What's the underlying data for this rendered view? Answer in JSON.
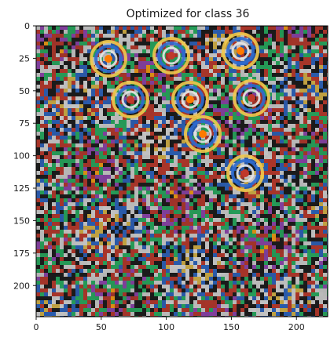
{
  "figure": {
    "title": "Optimized for class 36",
    "image_description_name": "activation-maximization-image",
    "image_size": [
      224,
      224
    ],
    "x_ticks": [
      0,
      50,
      100,
      150,
      200
    ],
    "y_ticks": [
      0,
      25,
      50,
      75,
      100,
      125,
      150,
      175,
      200
    ],
    "x_tick_labels": [
      "0",
      "50",
      "100",
      "150",
      "200"
    ],
    "y_tick_labels": [
      "0",
      "25",
      "50",
      "75",
      "100",
      "125",
      "150",
      "175",
      "200"
    ],
    "palette": [
      "#f2c94c",
      "#2d6bd1",
      "#e6e6e6",
      "#1a1a1a",
      "#c0392b",
      "#27ae60",
      "#8e44ad",
      "#f39c12",
      "#16a085",
      "#d35400",
      "#ff4fd8",
      "#35c8ff"
    ]
  }
}
